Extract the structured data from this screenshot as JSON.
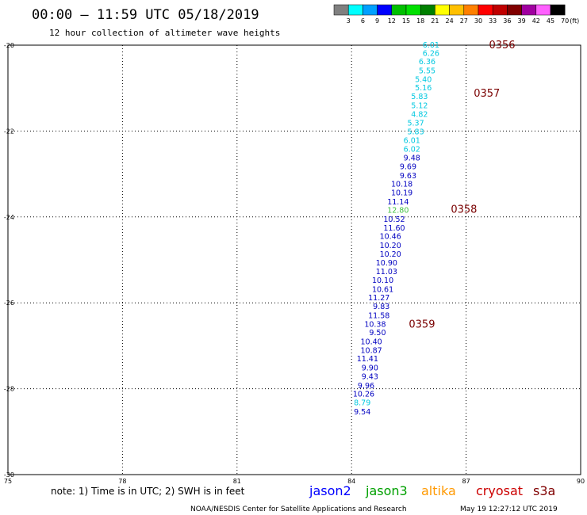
{
  "header": {
    "title": "00:00 – 11:59 UTC 05/18/2019",
    "subtitle": "12 hour collection of altimeter wave heights"
  },
  "colorbar": {
    "colors": [
      "#808080",
      "#00ffff",
      "#00a0ff",
      "#0000ff",
      "#00c000",
      "#00e000",
      "#008000",
      "#ffff00",
      "#ffc000",
      "#ff8000",
      "#ff0000",
      "#c00000",
      "#800000",
      "#a000a0",
      "#ff60ff",
      "#000000"
    ],
    "labels": [
      "3",
      "6",
      "9",
      "12",
      "15",
      "18",
      "21",
      "24",
      "27",
      "30",
      "33",
      "36",
      "39",
      "42",
      "45",
      "70"
    ],
    "unit": "(ft)"
  },
  "chart_data": {
    "type": "scatter",
    "title": "00:00 – 11:59 UTC 05/18/2019",
    "subtitle": "12 hour collection of altimeter wave heights",
    "xlim": [
      75,
      90
    ],
    "ylim": [
      -30,
      -20
    ],
    "x_ticks": [
      "75",
      "78",
      "81",
      "84",
      "87",
      "90"
    ],
    "y_ticks": [
      "-20",
      "-22",
      "-24",
      "-26",
      "-28",
      "-30"
    ],
    "grid": true,
    "points": [
      {
        "x": 86.3,
        "y": -20.0,
        "label": "6.01",
        "color": "#00c8e0"
      },
      {
        "x": 86.3,
        "y": -20.19,
        "label": "6.26",
        "color": "#00c8e0"
      },
      {
        "x": 86.2,
        "y": -20.39,
        "label": "6.36",
        "color": "#00c8e0"
      },
      {
        "x": 86.2,
        "y": -20.6,
        "label": "5.55",
        "color": "#00c8e0"
      },
      {
        "x": 86.1,
        "y": -20.8,
        "label": "5.40",
        "color": "#00c8e0"
      },
      {
        "x": 86.1,
        "y": -21.0,
        "label": "5.16",
        "color": "#00c8e0"
      },
      {
        "x": 86.0,
        "y": -21.2,
        "label": "5.83",
        "color": "#00c8e0"
      },
      {
        "x": 86.0,
        "y": -21.41,
        "label": "5.12",
        "color": "#00c8e0"
      },
      {
        "x": 86.0,
        "y": -21.61,
        "label": "4.82",
        "color": "#00c8e0"
      },
      {
        "x": 85.9,
        "y": -21.82,
        "label": "5.37",
        "color": "#00c8e0"
      },
      {
        "x": 85.9,
        "y": -22.02,
        "label": "5.83",
        "color": "#00c8e0"
      },
      {
        "x": 85.8,
        "y": -22.22,
        "label": "6.01",
        "color": "#00c8e0"
      },
      {
        "x": 85.8,
        "y": -22.43,
        "label": "6.02",
        "color": "#00c8e0"
      },
      {
        "x": 85.8,
        "y": -22.63,
        "label": "9.48",
        "color": "#0000c0"
      },
      {
        "x": 85.7,
        "y": -22.83,
        "label": "9.69",
        "color": "#0000c0"
      },
      {
        "x": 85.7,
        "y": -23.04,
        "label": "9.63",
        "color": "#0000c0"
      },
      {
        "x": 85.6,
        "y": -23.24,
        "label": "10.18",
        "color": "#0000c0"
      },
      {
        "x": 85.6,
        "y": -23.44,
        "label": "10.19",
        "color": "#0000c0"
      },
      {
        "x": 85.5,
        "y": -23.65,
        "label": "11.14",
        "color": "#0000c0"
      },
      {
        "x": 85.5,
        "y": -23.85,
        "label": "12.80",
        "color": "#40c040"
      },
      {
        "x": 85.4,
        "y": -24.06,
        "label": "10.52",
        "color": "#0000c0"
      },
      {
        "x": 85.4,
        "y": -24.26,
        "label": "11.60",
        "color": "#0000c0"
      },
      {
        "x": 85.3,
        "y": -24.46,
        "label": "10.46",
        "color": "#0000c0"
      },
      {
        "x": 85.3,
        "y": -24.67,
        "label": "10.20",
        "color": "#0000c0"
      },
      {
        "x": 85.3,
        "y": -24.87,
        "label": "10.20",
        "color": "#0000c0"
      },
      {
        "x": 85.2,
        "y": -25.07,
        "label": "10.90",
        "color": "#0000c0"
      },
      {
        "x": 85.2,
        "y": -25.28,
        "label": "11.03",
        "color": "#0000c0"
      },
      {
        "x": 85.1,
        "y": -25.48,
        "label": "10.10",
        "color": "#0000c0"
      },
      {
        "x": 85.1,
        "y": -25.69,
        "label": "10.61",
        "color": "#0000c0"
      },
      {
        "x": 85.0,
        "y": -25.89,
        "label": "11.27",
        "color": "#0000c0"
      },
      {
        "x": 85.0,
        "y": -26.09,
        "label": "9.83",
        "color": "#0000c0"
      },
      {
        "x": 85.0,
        "y": -26.3,
        "label": "11.58",
        "color": "#0000c0"
      },
      {
        "x": 84.9,
        "y": -26.5,
        "label": "10.38",
        "color": "#0000c0"
      },
      {
        "x": 84.9,
        "y": -26.7,
        "label": "9.50",
        "color": "#0000c0"
      },
      {
        "x": 84.8,
        "y": -26.91,
        "label": "10.40",
        "color": "#0000c0"
      },
      {
        "x": 84.8,
        "y": -27.11,
        "label": "10.87",
        "color": "#0000c0"
      },
      {
        "x": 84.7,
        "y": -27.31,
        "label": "11.41",
        "color": "#0000c0"
      },
      {
        "x": 84.7,
        "y": -27.52,
        "label": "9.90",
        "color": "#0000c0"
      },
      {
        "x": 84.7,
        "y": -27.72,
        "label": "9.43",
        "color": "#0000c0"
      },
      {
        "x": 84.6,
        "y": -27.93,
        "label": "9.96",
        "color": "#0000c0"
      },
      {
        "x": 84.6,
        "y": -28.13,
        "label": "10.26",
        "color": "#0000c0"
      },
      {
        "x": 84.5,
        "y": -28.33,
        "label": "8.79",
        "color": "#00c8e0"
      },
      {
        "x": 84.5,
        "y": -28.54,
        "label": "9.54",
        "color": "#0000c0"
      }
    ],
    "pass_times": [
      {
        "x": 87.6,
        "y": -20.0,
        "label": "0356"
      },
      {
        "x": 87.2,
        "y": -21.13,
        "label": "0357"
      },
      {
        "x": 86.6,
        "y": -23.83,
        "label": "0358"
      },
      {
        "x": 85.5,
        "y": -26.5,
        "label": "0359"
      }
    ]
  },
  "footer": {
    "note": "note: 1) Time is in UTC; 2) SWH is in feet",
    "satellites": [
      {
        "name": "jason2",
        "color": "#0000ff"
      },
      {
        "name": "jason3",
        "color": "#00a000"
      },
      {
        "name": "altika",
        "color": "#ff9900"
      },
      {
        "name": "cryosat",
        "color": "#cc0000"
      },
      {
        "name": "s3a",
        "color": "#800000"
      }
    ],
    "credit": "NOAA/NESDIS Center for Satellite Applications and Research",
    "timestamp": "May 19 12:27:12 UTC 2019"
  }
}
